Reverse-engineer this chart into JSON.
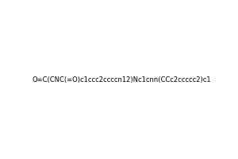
{
  "smiles": "O=C(CNC(=O)c1ccc2ccccn12)Nc1cnn(CCc2ccccc2)c1",
  "title": "",
  "figsize": [
    3.0,
    2.0
  ],
  "dpi": 100,
  "bg_color": "#ffffff"
}
